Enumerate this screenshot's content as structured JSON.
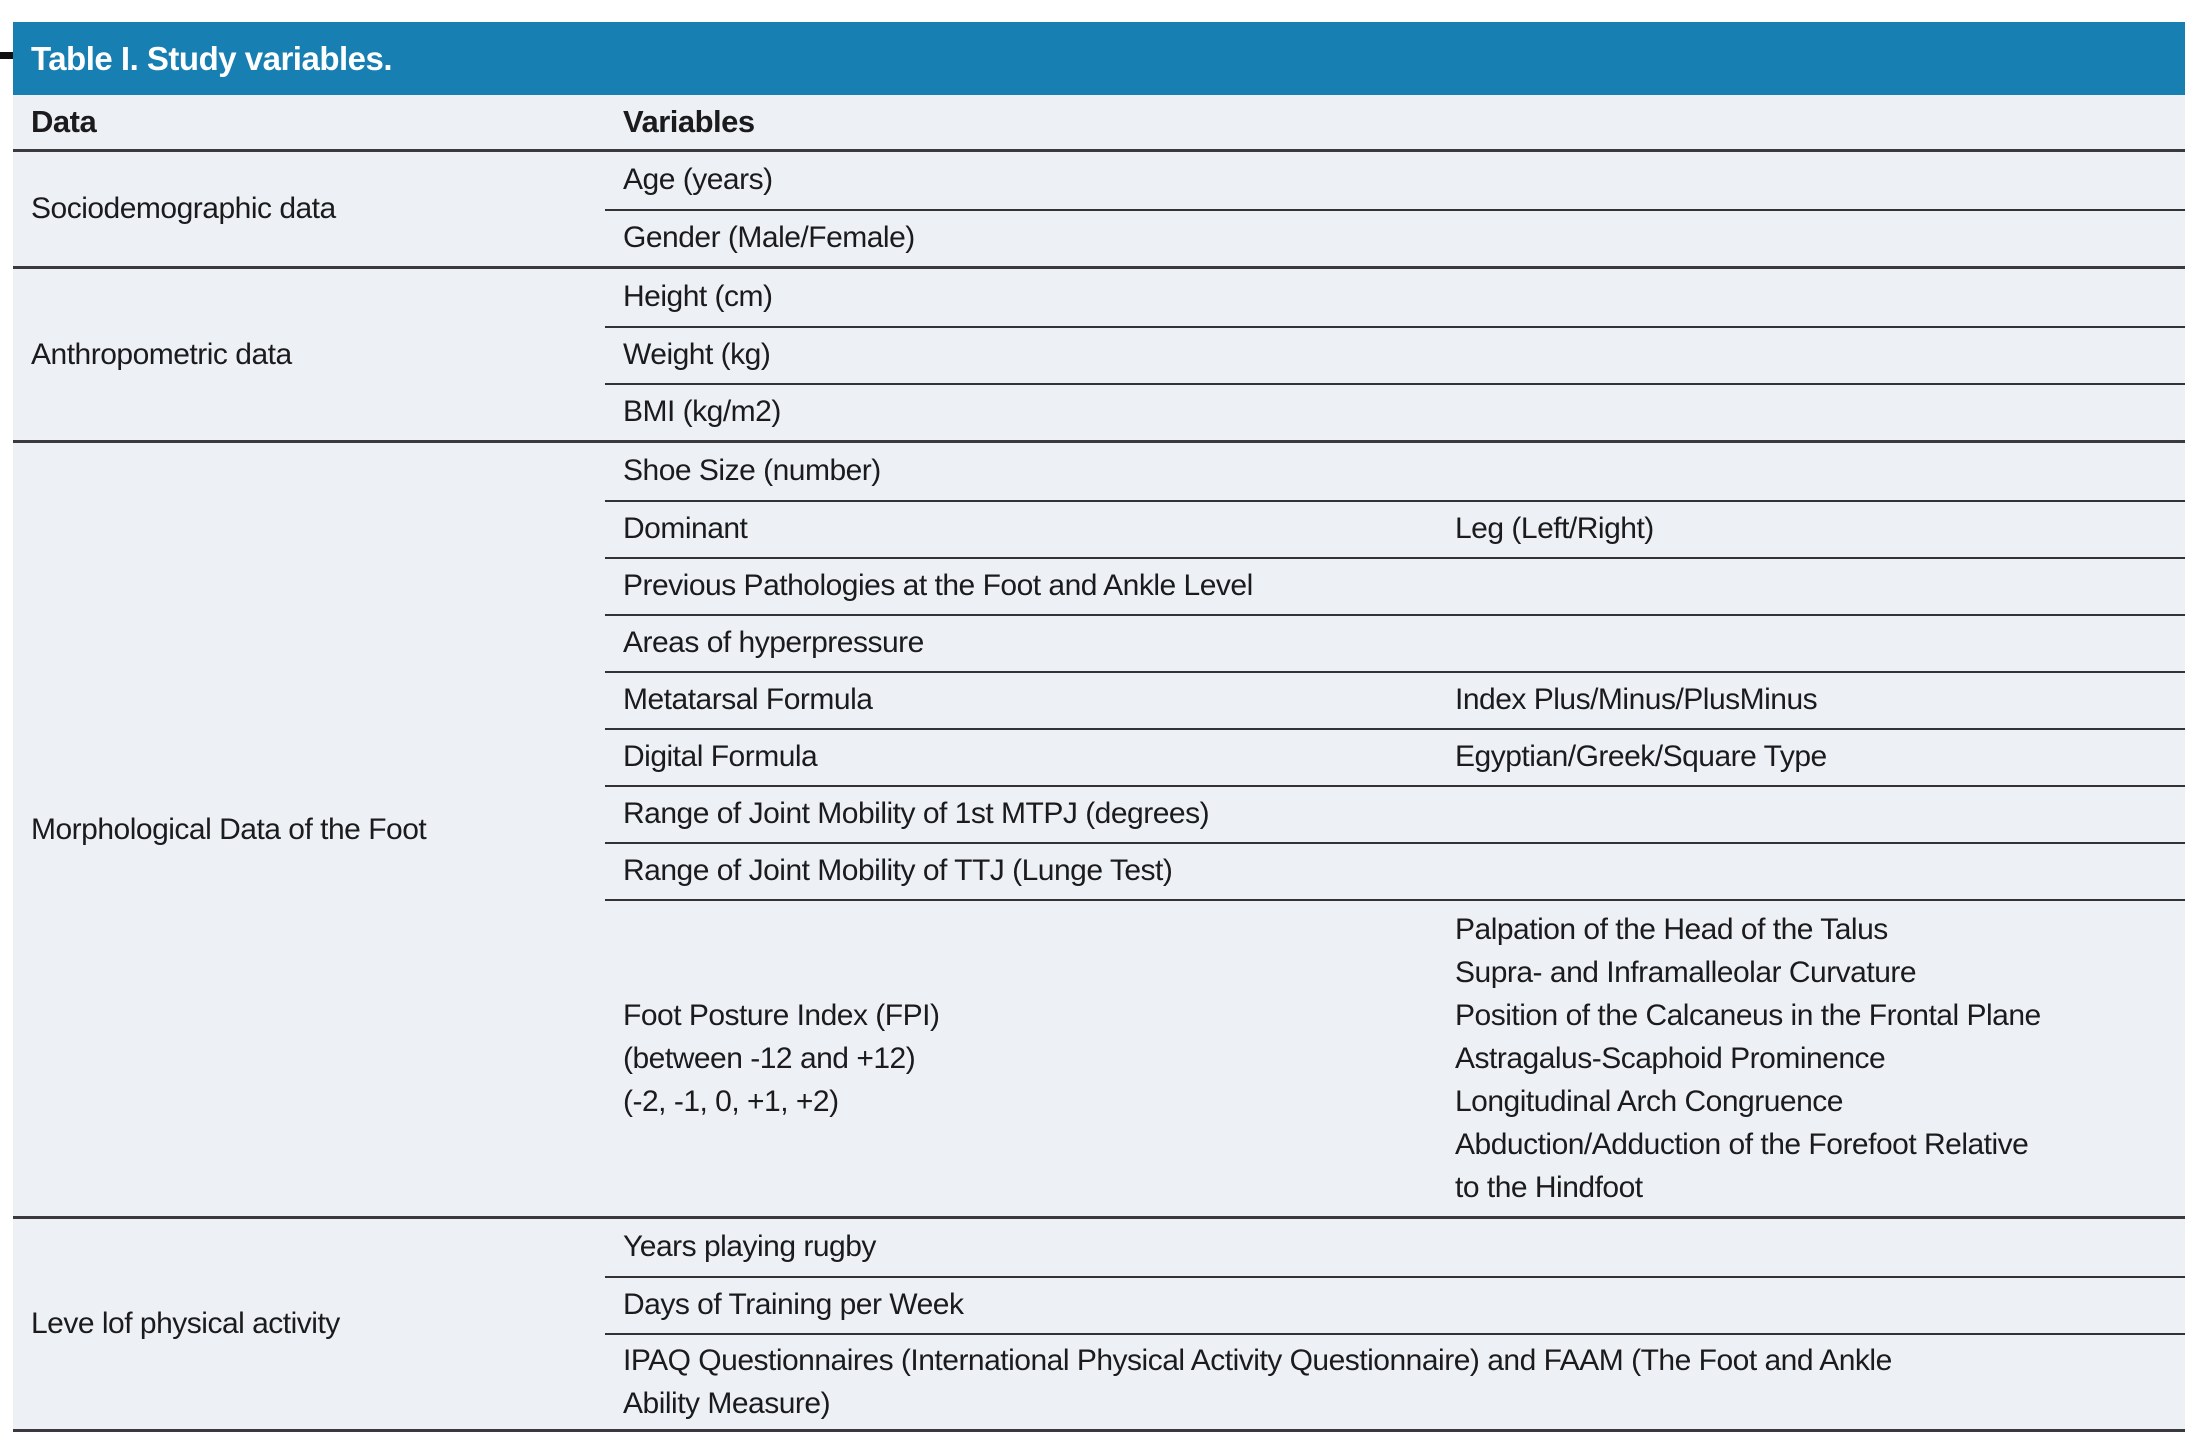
{
  "table": {
    "title": "Table I. Study variables.",
    "columns": {
      "data": "Data",
      "variables": "Variables"
    },
    "colors": {
      "title_bar_bg": "#177FB1",
      "title_text": "#FFFFFF",
      "body_bg": "#EDF1F6",
      "border": "#333336",
      "text": "#1B1B1D"
    },
    "sections": [
      {
        "label": "Sociodemographic data",
        "rows": [
          {
            "variable": "Age (years)"
          },
          {
            "variable": "Gender (Male/Female)"
          }
        ]
      },
      {
        "label": "Anthropometric data",
        "rows": [
          {
            "variable": "Height (cm)"
          },
          {
            "variable": "Weight (kg)"
          },
          {
            "variable": "BMI (kg/m2)"
          }
        ]
      },
      {
        "label": "Morphological Data of the Foot",
        "rows": [
          {
            "variable": "Shoe Size (number)"
          },
          {
            "variable": "Dominant",
            "detail": "Leg (Left/Right)"
          },
          {
            "variable": "Previous Pathologies at the Foot and Ankle Level"
          },
          {
            "variable": "Areas of hyperpressure"
          },
          {
            "variable": "Metatarsal Formula",
            "detail": "Index Plus/Minus/PlusMinus"
          },
          {
            "variable": "Digital Formula",
            "detail": "Egyptian/Greek/Square Type"
          },
          {
            "variable": "Range of Joint Mobility of 1st MTPJ (degrees)"
          },
          {
            "variable": "Range of Joint Mobility of TTJ (Lunge Test)"
          },
          {
            "variable": "Foot Posture Index (FPI)\n(between -12 and +12)\n(-2, -1, 0, +1, +2)",
            "detail": "Palpation of the Head of the Talus\nSupra- and Inframalleolar Curvature\nPosition of the Calcaneus in the Frontal Plane\nAstragalus-Scaphoid Prominence\nLongitudinal Arch Congruence\nAbduction/Adduction of the Forefoot Relative\nto the Hindfoot"
          }
        ]
      },
      {
        "label": "Leve lof physical activity",
        "rows": [
          {
            "variable": "Years playing rugby"
          },
          {
            "variable": "Days of Training per Week"
          },
          {
            "variable": "IPAQ Questionnaires (International Physical Activity Questionnaire) and FAAM (The Foot and Ankle\nAbility Measure)"
          }
        ]
      }
    ]
  }
}
